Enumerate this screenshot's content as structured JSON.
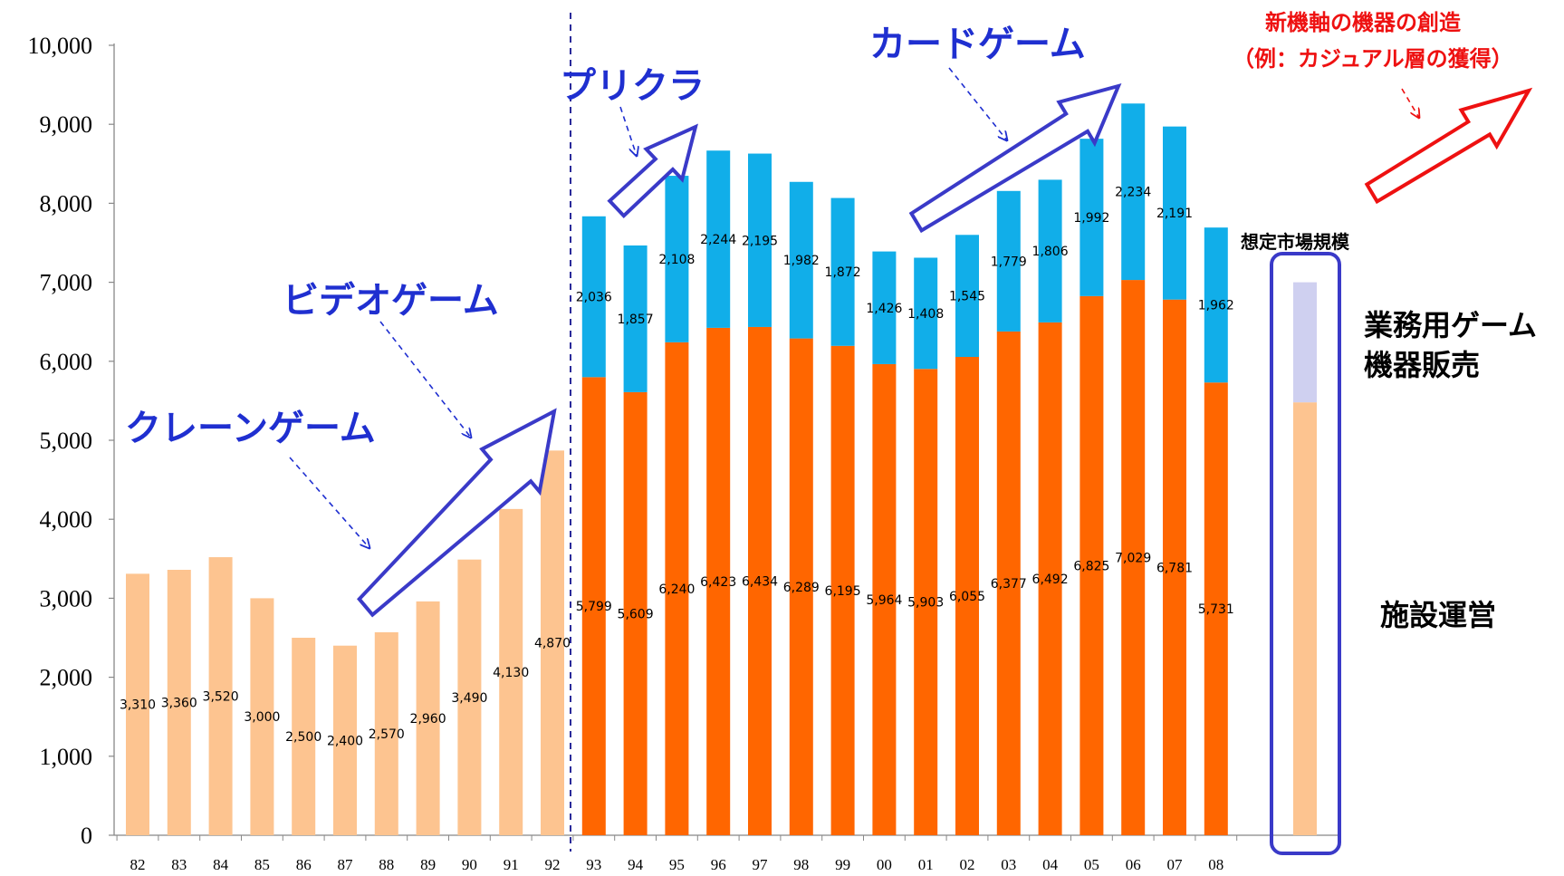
{
  "chart_data": {
    "type": "bar",
    "categories": [
      "82",
      "83",
      "84",
      "85",
      "86",
      "87",
      "88",
      "89",
      "90",
      "91",
      "92",
      "93",
      "94",
      "95",
      "96",
      "97",
      "98",
      "99",
      "00",
      "01",
      "02",
      "03",
      "04",
      "05",
      "06",
      "07",
      "08"
    ],
    "series": [
      {
        "name": "施設運営",
        "values": [
          3310,
          3360,
          3520,
          3000,
          2500,
          2400,
          2570,
          2960,
          3490,
          4130,
          4870,
          5799,
          5609,
          6240,
          6423,
          6434,
          6289,
          6195,
          5964,
          5903,
          6055,
          6377,
          6492,
          6825,
          7029,
          6781,
          5731
        ],
        "labels": [
          "3,310",
          "3,360",
          "3,520",
          "3,000",
          "2,500",
          "2,400",
          "2,570",
          "2,960",
          "3,490",
          "4,130",
          "4,870",
          "5,799",
          "5,609",
          "6,240",
          "6,423",
          "6,434",
          "6,289",
          "6,195",
          "5,964",
          "5,903",
          "6,055",
          "6,377",
          "6,492",
          "6,825",
          "7,029",
          "6,781",
          "5,731"
        ]
      },
      {
        "name": "業務用ゲーム機器販売",
        "values": [
          null,
          null,
          null,
          null,
          null,
          null,
          null,
          null,
          null,
          null,
          null,
          2036,
          1857,
          2108,
          2244,
          2195,
          1982,
          1872,
          1426,
          1408,
          1545,
          1779,
          1806,
          1992,
          2234,
          2191,
          1962
        ],
        "labels": [
          "",
          "",
          "",
          "",
          "",
          "",
          "",
          "",
          "",
          "",
          "",
          "2,036",
          "1,857",
          "2,108",
          "2,244",
          "2,195",
          "1,982",
          "1,872",
          "1,426",
          "1,408",
          "1,545",
          "1,779",
          "1,806",
          "1,992",
          "2,234",
          "2,191",
          "1,962"
        ]
      }
    ],
    "estimate": {
      "label": "想定市場規模",
      "operation": 5480,
      "sales": 1520
    },
    "yticks": [
      "0",
      "1,000",
      "2,000",
      "3,000",
      "4,000",
      "5,000",
      "6,000",
      "7,000",
      "8,000",
      "9,000",
      "10,000"
    ],
    "ylim": [
      0,
      10000
    ],
    "grid": false,
    "colors": {
      "operation_early": "#fdc490",
      "operation": "#ff6600",
      "sales": "#11aee9",
      "estimate_operation": "#fdc490",
      "estimate_sales": "#cfd0f0",
      "annotation": "#1f2fd0",
      "annotation_red": "#ee1111"
    }
  },
  "annotations": {
    "crane": "クレーンゲーム",
    "video": "ビデオゲーム",
    "purikura": "プリクラ",
    "card": "カードゲーム",
    "new_line1": "新機軸の機器の創造",
    "new_line2": "（例：カジュアル層の獲得）"
  },
  "side_labels": {
    "sales_line1": "業務用ゲーム",
    "sales_line2": "機器販売",
    "operation": "施設運営"
  }
}
